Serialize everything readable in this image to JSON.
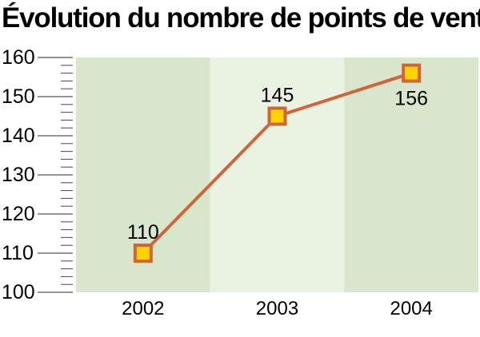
{
  "chart_data": {
    "type": "line",
    "title": "Évolution du nombre de points de vente",
    "categories": [
      "2002",
      "2003",
      "2004"
    ],
    "values": [
      110,
      145,
      156
    ],
    "data_labels": [
      "110",
      "145",
      "156"
    ],
    "yticks": [
      "100",
      "110",
      "120",
      "130",
      "140",
      "150",
      "160"
    ],
    "ylim": [
      100,
      160
    ],
    "xlabel": "",
    "ylabel": "",
    "grid": false,
    "colors": {
      "line": "#d2643a",
      "marker_fill": "#ffd200",
      "marker_edge": "#d2643a",
      "band_dark": "#d8e6cc",
      "band_light": "#eaf2e2",
      "axis": "#555555"
    }
  }
}
